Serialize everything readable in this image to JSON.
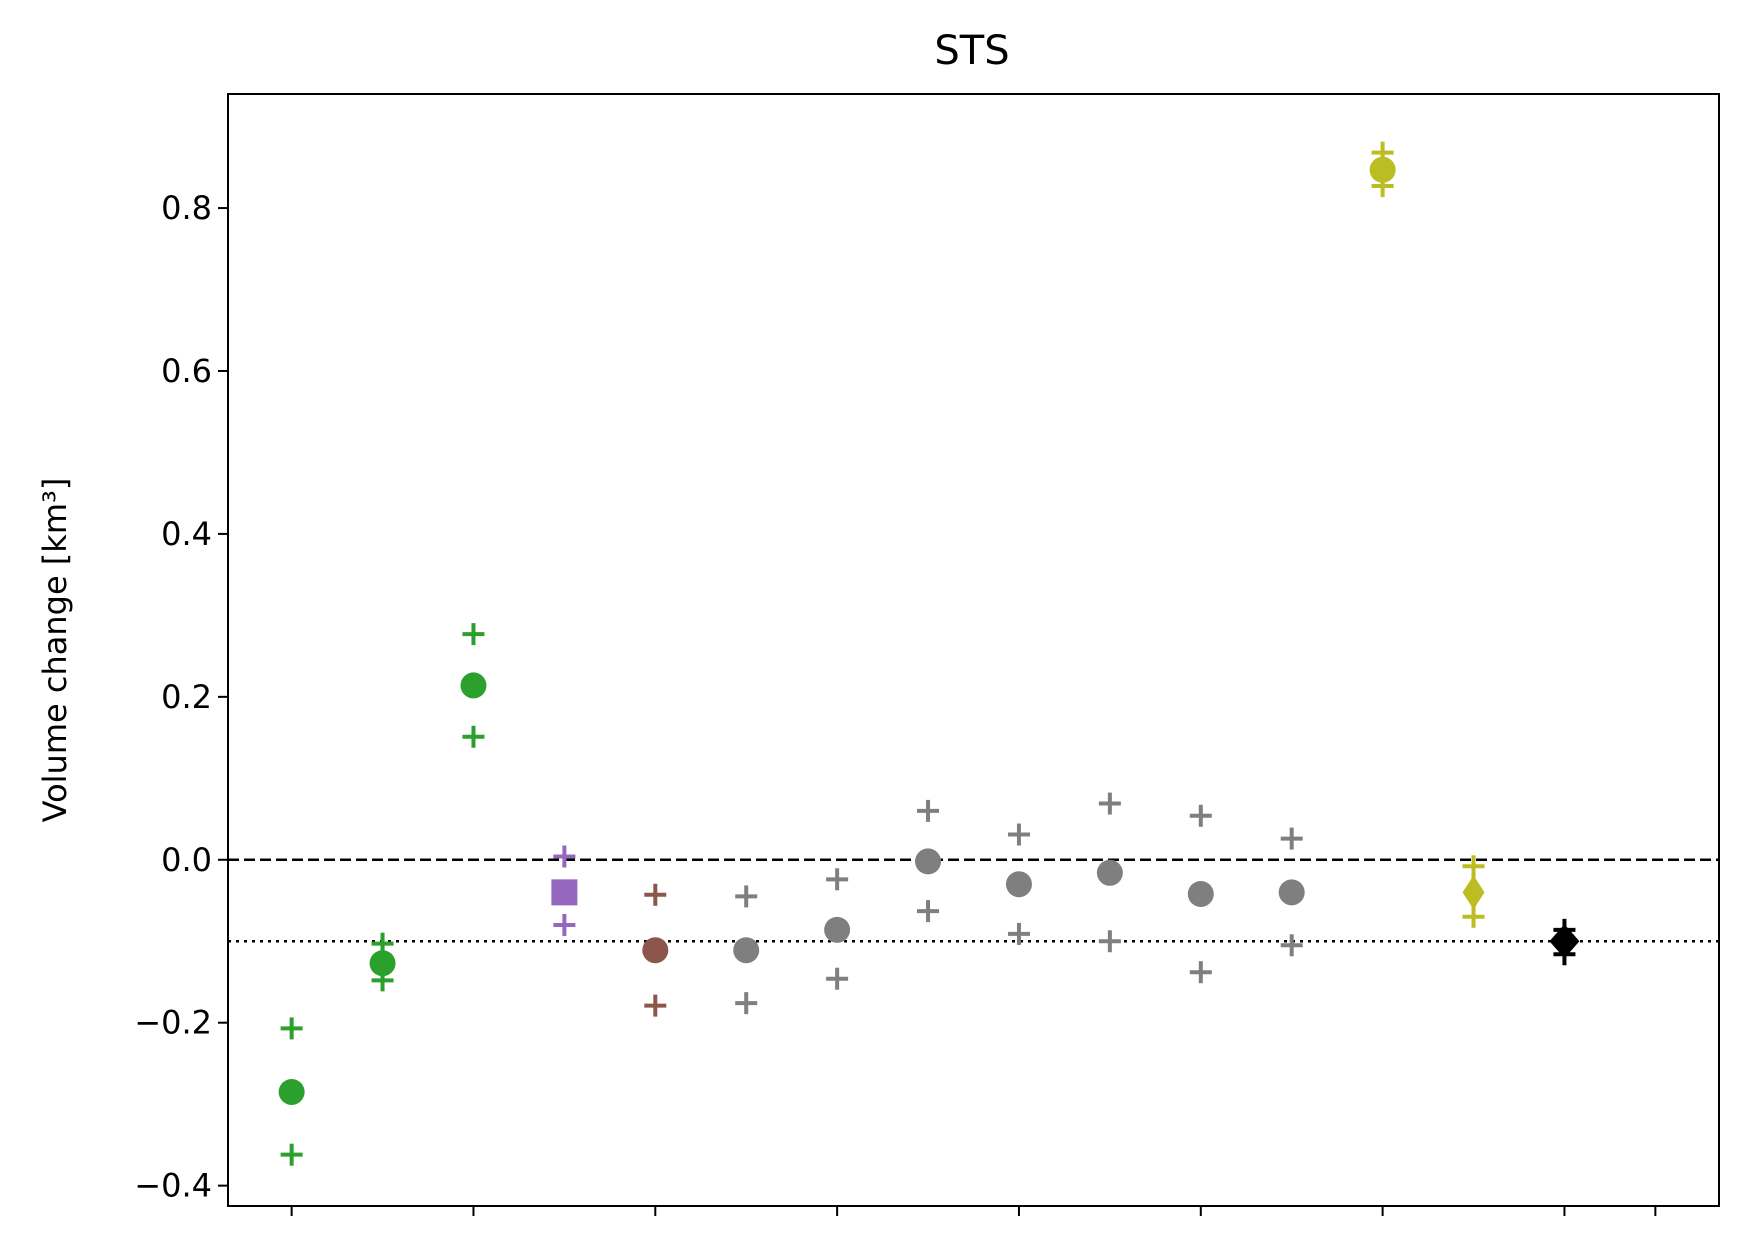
{
  "chart_data": {
    "type": "scatter",
    "title": "STS",
    "xlabel": "",
    "ylabel": "Volume change [km³]",
    "ylim": [
      -0.425,
      0.94
    ],
    "xlim": [
      0.3,
      16.7
    ],
    "yticks": [
      -0.4,
      -0.2,
      0.0,
      0.2,
      0.4,
      0.6,
      0.8
    ],
    "ytick_labels": [
      "−0.4",
      "−0.2",
      "0.0",
      "0.2",
      "0.4",
      "0.6",
      "0.8"
    ],
    "xticks": [
      1,
      3,
      5,
      7,
      9,
      11,
      13,
      15,
      16
    ],
    "xtick_labels": [],
    "grid": false,
    "reference_lines": [
      {
        "y": 0.0,
        "style": "dashed",
        "color": "#000000"
      },
      {
        "y": -0.1,
        "style": "dotted",
        "color": "#000000"
      }
    ],
    "points": [
      {
        "x": 1,
        "y": -0.285,
        "lower": -0.362,
        "upper": -0.207,
        "marker": "circle",
        "color": "#2ca02c"
      },
      {
        "x": 2,
        "y": -0.127,
        "lower": -0.148,
        "upper": -0.103,
        "marker": "circle",
        "color": "#2ca02c"
      },
      {
        "x": 3,
        "y": 0.214,
        "lower": 0.151,
        "upper": 0.277,
        "marker": "circle",
        "color": "#2ca02c"
      },
      {
        "x": 4,
        "y": -0.04,
        "lower": -0.08,
        "upper": 0.004,
        "marker": "square",
        "color": "#9467bd"
      },
      {
        "x": 5,
        "y": -0.111,
        "lower": -0.179,
        "upper": -0.043,
        "marker": "circle",
        "color": "#8c564b"
      },
      {
        "x": 6,
        "y": -0.111,
        "lower": -0.176,
        "upper": -0.045,
        "marker": "circle",
        "color": "#7f7f7f"
      },
      {
        "x": 7,
        "y": -0.086,
        "lower": -0.146,
        "upper": -0.024,
        "marker": "circle",
        "color": "#7f7f7f"
      },
      {
        "x": 8,
        "y": -0.002,
        "lower": -0.063,
        "upper": 0.06,
        "marker": "circle",
        "color": "#7f7f7f"
      },
      {
        "x": 9,
        "y": -0.03,
        "lower": -0.091,
        "upper": 0.031,
        "marker": "circle",
        "color": "#7f7f7f"
      },
      {
        "x": 10,
        "y": -0.016,
        "lower": -0.1,
        "upper": 0.069,
        "marker": "circle",
        "color": "#7f7f7f"
      },
      {
        "x": 11,
        "y": -0.042,
        "lower": -0.138,
        "upper": 0.054,
        "marker": "circle",
        "color": "#7f7f7f"
      },
      {
        "x": 12,
        "y": -0.04,
        "lower": -0.105,
        "upper": 0.026,
        "marker": "circle",
        "color": "#7f7f7f"
      },
      {
        "x": 13,
        "y": 0.847,
        "lower": 0.827,
        "upper": 0.868,
        "marker": "circle",
        "color": "#bcbd22"
      },
      {
        "x": 14,
        "y": -0.04,
        "lower": -0.07,
        "upper": -0.008,
        "marker": "diamond",
        "color": "#bcbd22"
      },
      {
        "x": 15,
        "y": -0.1,
        "lower": -0.116,
        "upper": -0.086,
        "marker": "diamond",
        "color": "#000000"
      }
    ]
  }
}
